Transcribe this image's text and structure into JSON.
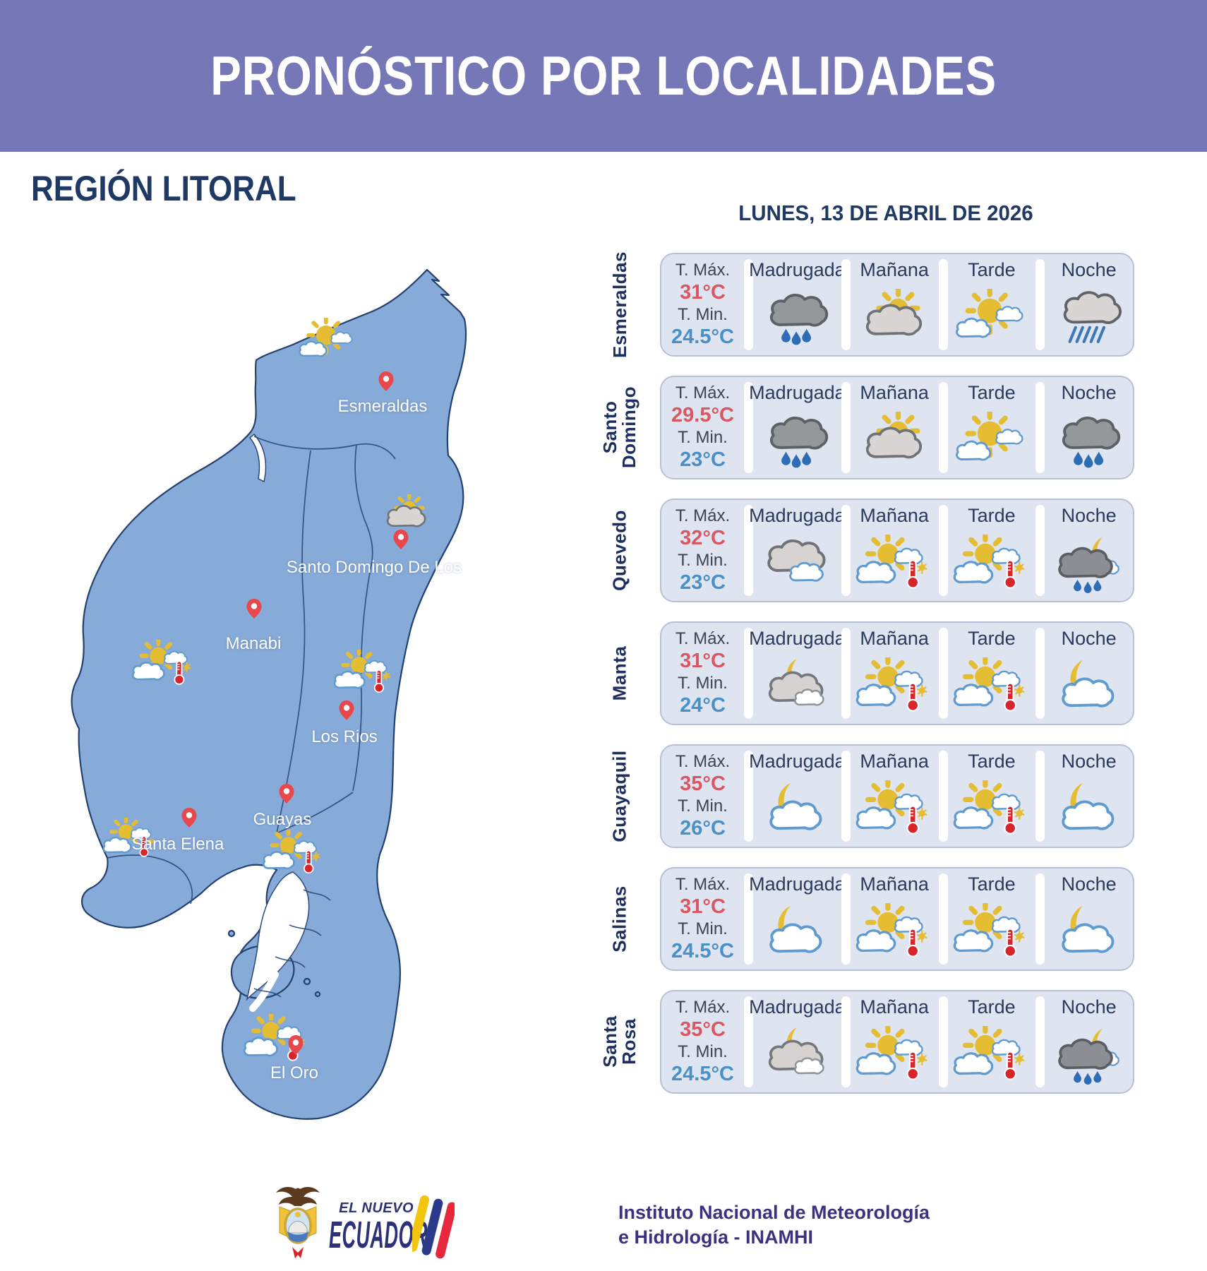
{
  "header": {
    "title": "PRONÓSTICO POR LOCALIDADES"
  },
  "region": {
    "title": "REGIÓN LITORAL"
  },
  "forecast": {
    "date_heading": "LUNES, 13 DE ABRIL DE 2026",
    "temp_max_label": "T. Máx.",
    "temp_min_label": "T. Min.",
    "periods": [
      "Madrugada",
      "Mañana",
      "Tarde",
      "Noche"
    ],
    "rows": [
      {
        "city": "Esmeraldas",
        "tmax": "31°C",
        "tmin": "24.5°C",
        "icons": [
          "cloud-rain-dark",
          "sun-gray-cloud",
          "sun-white-clouds",
          "cloud-rain-streaks"
        ]
      },
      {
        "city": "Santo Domingo",
        "tmax": "29.5°C",
        "tmin": "23°C",
        "icons": [
          "cloud-rain-dark",
          "sun-gray-cloud",
          "sun-white-clouds",
          "cloud-rain-dark"
        ]
      },
      {
        "city": "Quevedo",
        "tmax": "32°C",
        "tmin": "23°C",
        "icons": [
          "gray-white-clouds",
          "sun-clouds-hot",
          "sun-clouds-hot",
          "moon-dark-cloud-rain"
        ]
      },
      {
        "city": "Manta",
        "tmax": "31°C",
        "tmin": "24°C",
        "icons": [
          "moon-gray-cloud",
          "sun-clouds-hot",
          "sun-clouds-hot",
          "moon-white-cloud"
        ]
      },
      {
        "city": "Guayaquil",
        "tmax": "35°C",
        "tmin": "26°C",
        "icons": [
          "moon-white-cloud",
          "sun-clouds-hot",
          "sun-clouds-hot",
          "moon-white-cloud"
        ]
      },
      {
        "city": "Salinas",
        "tmax": "31°C",
        "tmin": "24.5°C",
        "icons": [
          "moon-white-cloud",
          "sun-clouds-hot",
          "sun-clouds-hot",
          "moon-white-cloud"
        ]
      },
      {
        "city": "Santa Rosa",
        "tmax": "35°C",
        "tmin": "24.5°C",
        "icons": [
          "moon-gray-cloud",
          "sun-clouds-hot",
          "sun-clouds-hot",
          "moon-dark-cloud-rain"
        ]
      }
    ]
  },
  "map": {
    "labels": [
      "Esmeraldas",
      "Santo Domingo De Los",
      "Manabi",
      "Los Rios",
      "Guayas",
      "Santa Elena",
      "El Oro"
    ],
    "icons": [
      "sun-white-clouds",
      "sun-gray-cloud",
      "sun-clouds-hot",
      "sun-clouds-hot",
      "sun-clouds-hot",
      "sun-clouds-hot",
      "sun-clouds-hot"
    ]
  },
  "footer": {
    "logo_small": "EL NUEVO",
    "logo_big": "ECUADOR",
    "org_line1": "Instituto Nacional de Meteorología",
    "org_line2": "e Hidrología - INAMHI"
  },
  "colors": {
    "banner_purple": "#7577b6",
    "navy": "#1f3864",
    "temp_max_red": "#d95762",
    "temp_min_blue": "#4b8fc7",
    "card_bg": "#dfe4f1",
    "map_blue": "#87abd9",
    "pin_red": "#e8474b",
    "sun_yellow": "#e5bd33",
    "logo_indigo": "#2d3178",
    "org_text": "#39337f"
  }
}
